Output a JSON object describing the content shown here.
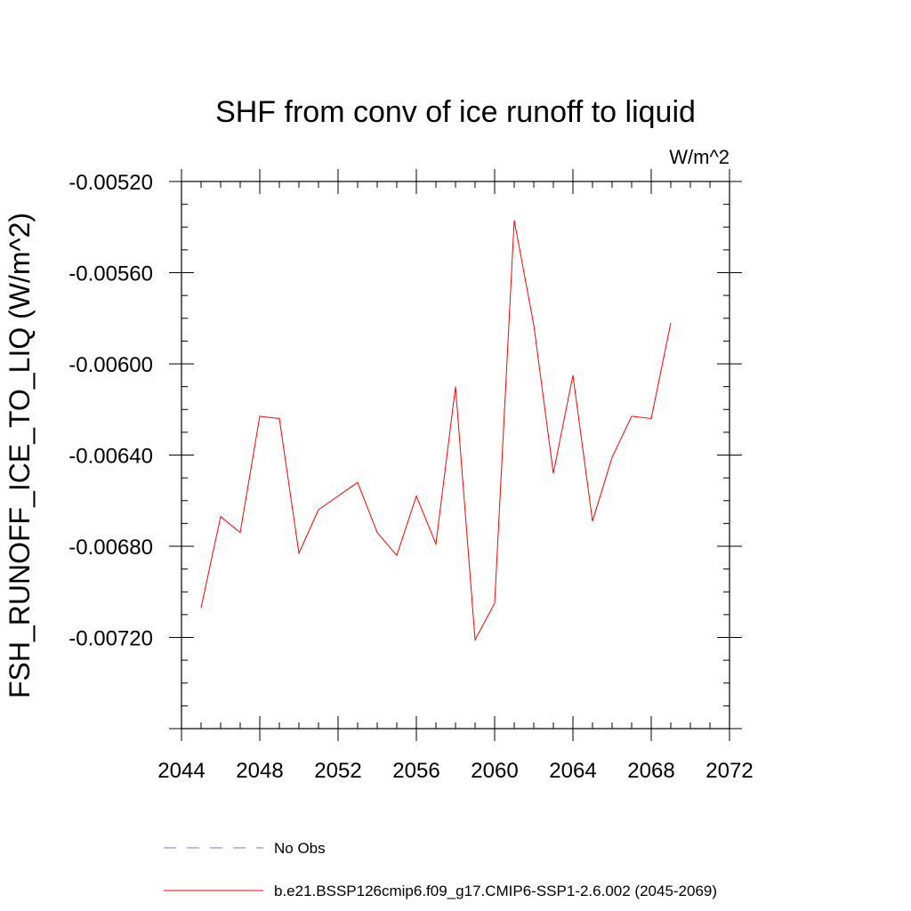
{
  "chart_data": {
    "type": "line",
    "title": "SHF from conv of ice runoff to liquid",
    "units": "W/m^2",
    "ylabel": "FSH_RUNOFF_ICE_TO_LIQ  (W/m^2)",
    "xlabel": "",
    "xlim": [
      2044,
      2072
    ],
    "ylim": [
      -0.0076,
      -0.0052
    ],
    "x_ticks": [
      "2044",
      "2048",
      "2052",
      "2056",
      "2060",
      "2064",
      "2068",
      "2072"
    ],
    "y_ticks": [
      "-0.00520",
      "-0.00560",
      "-0.00600",
      "-0.00640",
      "-0.00680",
      "-0.00720"
    ],
    "grid": false,
    "legend_position": "bottom",
    "series": [
      {
        "name": "b.e21.BSSP126cmip6.f09_g17.CMIP6-SSP1-2.6.002 (2045-2069)",
        "color": "#ff0000",
        "style": "solid",
        "x": [
          2045,
          2046,
          2047,
          2048,
          2049,
          2050,
          2051,
          2052,
          2053,
          2054,
          2055,
          2056,
          2057,
          2058,
          2059,
          2060,
          2061,
          2062,
          2063,
          2064,
          2065,
          2066,
          2067,
          2068,
          2069
        ],
        "values": [
          -0.00707,
          -0.00667,
          -0.00674,
          -0.00623,
          -0.00624,
          -0.00683,
          -0.00664,
          -0.00658,
          -0.00652,
          -0.00674,
          -0.00684,
          -0.00658,
          -0.00679,
          -0.0061,
          -0.00721,
          -0.00705,
          -0.00537,
          -0.00583,
          -0.00648,
          -0.00605,
          -0.00669,
          -0.00641,
          -0.00623,
          -0.00624,
          -0.00582
        ]
      },
      {
        "name": "No Obs",
        "color": "#7777cc",
        "style": "dashed",
        "x": [],
        "values": []
      }
    ]
  }
}
